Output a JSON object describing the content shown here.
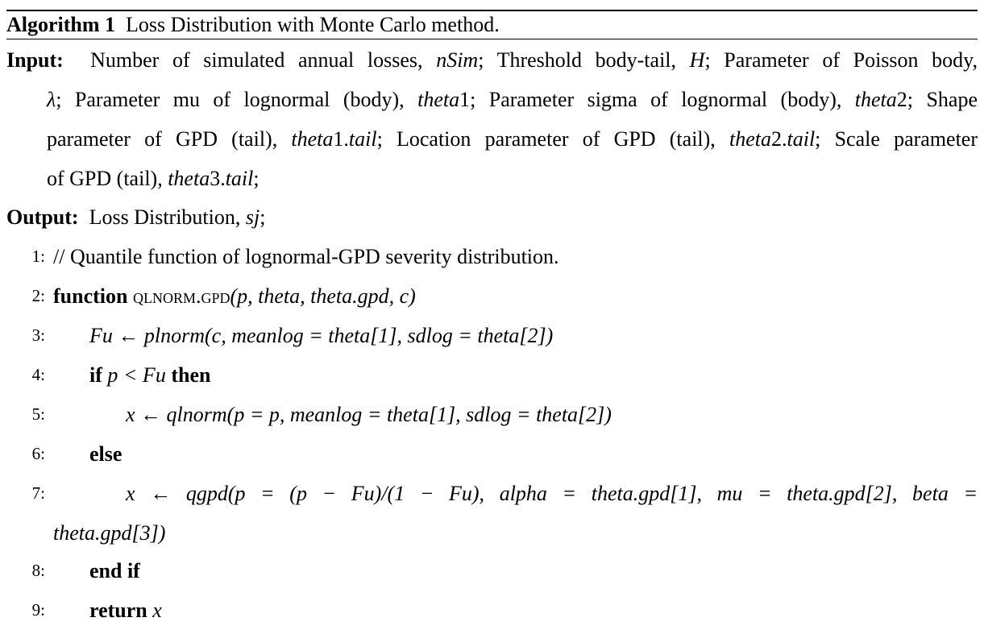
{
  "algorithm": {
    "label": "Algorithm 1",
    "caption": "Loss Distribution with Monte Carlo method."
  },
  "input": {
    "label": "Input:",
    "lines": [
      [
        "Number of simulated annual losses, ",
        "nSim",
        "; Threshold body-tail, ",
        "H",
        "; Parameter of Poisson body,"
      ],
      [
        "λ",
        "; Parameter mu of lognormal (body), ",
        "theta",
        "1; Parameter sigma of lognormal (body), ",
        "theta",
        "2; Shape"
      ],
      [
        "parameter of GPD (tail), ",
        "theta",
        "1.",
        "tail",
        "; Location parameter of GPD (tail), ",
        "theta",
        "2.",
        "tail",
        "; Scale parameter"
      ],
      [
        "of GPD (tail), ",
        "theta",
        "3.",
        "tail",
        ";"
      ]
    ]
  },
  "output": {
    "label": "Output:",
    "text": "Loss Distribution, ",
    "var": "sj",
    "end": ";"
  },
  "steps": [
    {
      "num": "1:",
      "text": "// Quantile function of lognormal-GPD severity distribution."
    },
    {
      "num": "2:",
      "kw": "function",
      "fname": "qlnorm.gpd",
      "args": "(p, theta, theta.gpd, c)"
    },
    {
      "num": "3:",
      "lhs": "Fu",
      "arrow": "←",
      "rhs": "plnorm(c, meanlog = theta[1], sdlog = theta[2])"
    },
    {
      "num": "4:",
      "kw": "if",
      "cond": "p < Fu",
      "kw2": "then"
    },
    {
      "num": "5:",
      "lhs": "x",
      "arrow": "←",
      "rhs": "qlnorm(p = p, meanlog = theta[1], sdlog = theta[2])"
    },
    {
      "num": "6:",
      "kw": "else"
    },
    {
      "num": "7:",
      "lhs": "x",
      "arrow": "←",
      "rhs": "qgpd(p = (p − Fu)/(1 − Fu), alpha = theta.gpd[1], mu = theta.gpd[2], beta =",
      "cont": "theta.gpd[3])"
    },
    {
      "num": "8:",
      "kw": "end if"
    },
    {
      "num": "9:",
      "kw": "return",
      "val": "x"
    }
  ]
}
